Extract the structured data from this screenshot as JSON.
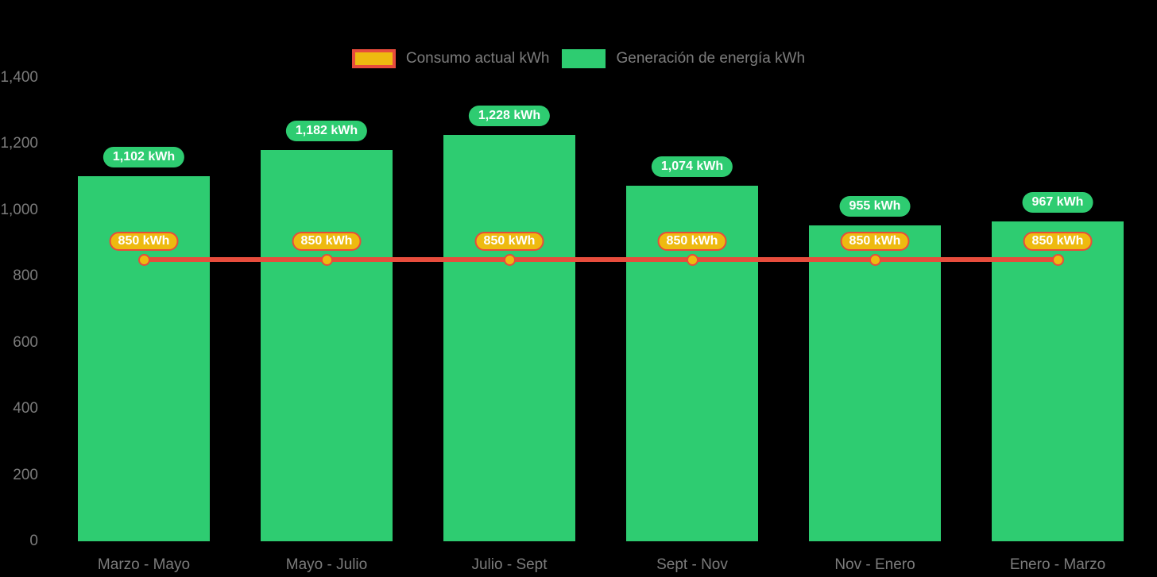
{
  "colors": {
    "background": "#000000",
    "bar_green": "#2ecc71",
    "line_red": "#e74c3c",
    "marker_yellow": "#eeba10",
    "axis_text": "#7c7c7c",
    "badge_text": "#ffffff"
  },
  "legend": {
    "items": [
      {
        "id": "consumo",
        "label": "Consumo actual kWh",
        "swatch_fill": "#eeba10",
        "swatch_border": "#e74c3c"
      },
      {
        "id": "generacion",
        "label": "Generación de energía kWh",
        "swatch_fill": "#2ecc71",
        "swatch_border": "#2ecc71"
      }
    ]
  },
  "chart_data": {
    "type": "bar",
    "subtype": "bar+line combo",
    "categories": [
      "Marzo - Mayo",
      "Mayo - Julio",
      "Julio - Sept",
      "Sept - Nov",
      "Nov - Enero",
      "Enero - Marzo"
    ],
    "series": [
      {
        "name": "Generación de energía kWh",
        "type": "bar",
        "color": "#2ecc71",
        "values": [
          1102,
          1182,
          1228,
          1074,
          955,
          967
        ],
        "labels": [
          "1,102 kWh",
          "1,182 kWh",
          "1,228 kWh",
          "1,074 kWh",
          "955 kWh",
          "967 kWh"
        ]
      },
      {
        "name": "Consumo actual kWh",
        "type": "line",
        "color": "#e74c3c",
        "marker_color": "#eeba10",
        "values": [
          850,
          850,
          850,
          850,
          850,
          850
        ],
        "labels": [
          "850 kWh",
          "850 kWh",
          "850 kWh",
          "850 kWh",
          "850 kWh",
          "850 kWh"
        ]
      }
    ],
    "yticks": [
      {
        "value": 0,
        "label": "0"
      },
      {
        "value": 200,
        "label": "200"
      },
      {
        "value": 400,
        "label": "400"
      },
      {
        "value": 600,
        "label": "600"
      },
      {
        "value": 800,
        "label": "800"
      },
      {
        "value": 1000,
        "label": "1,000"
      },
      {
        "value": 1200,
        "label": "1,200"
      },
      {
        "value": 1400,
        "label": "1,400"
      }
    ],
    "ylim": [
      0,
      1400
    ],
    "xlabel": "",
    "ylabel": "",
    "title": "",
    "grid": false,
    "legend_position": "top"
  }
}
